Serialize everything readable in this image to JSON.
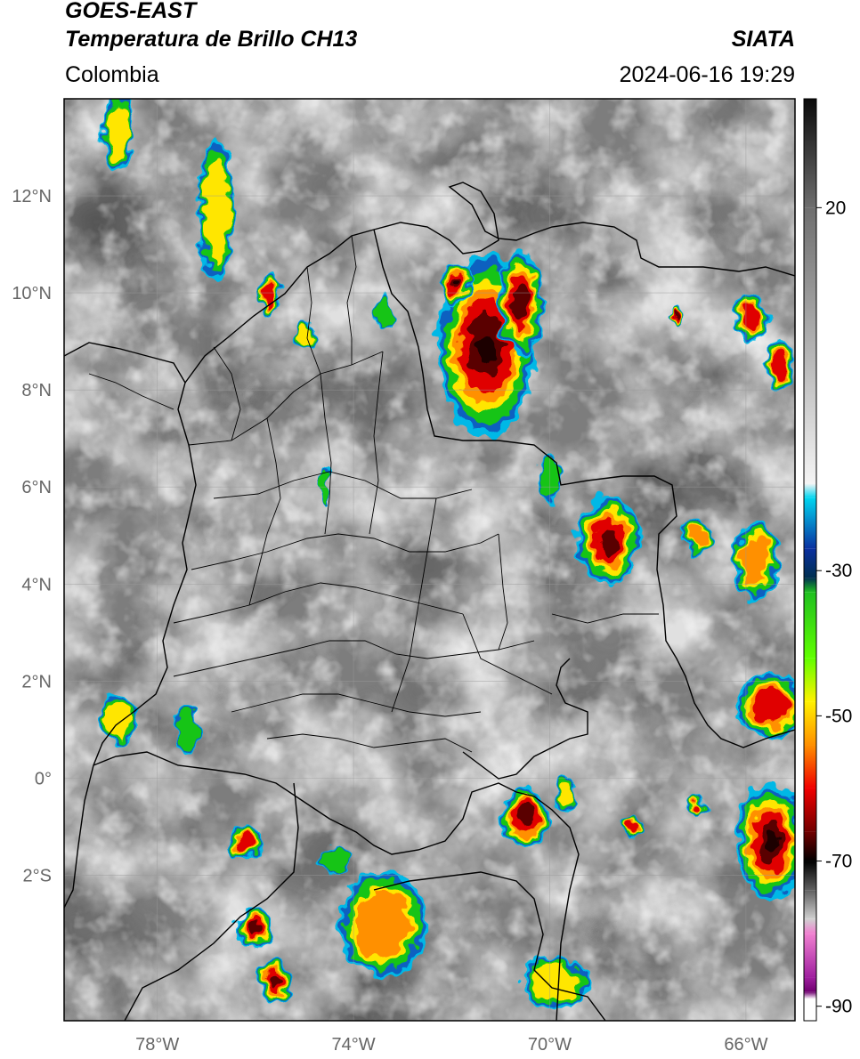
{
  "header": {
    "satellite": "GOES-EAST",
    "product": "Temperatura de Brillo CH13",
    "region": "Colombia",
    "organization": "SIATA",
    "timestamp": "2024-06-16 19:29"
  },
  "map": {
    "extent": {
      "lon_min": -79.9,
      "lon_max": -65.0,
      "lat_min": -5.0,
      "lat_max": 14.0
    },
    "lat_ticks": [
      {
        "value": 12,
        "label": "12°N"
      },
      {
        "value": 10,
        "label": "10°N"
      },
      {
        "value": 8,
        "label": "8°N"
      },
      {
        "value": 6,
        "label": "6°N"
      },
      {
        "value": 4,
        "label": "4°N"
      },
      {
        "value": 2,
        "label": "2°N"
      },
      {
        "value": 0,
        "label": "0°"
      },
      {
        "value": -2,
        "label": "2°S"
      }
    ],
    "lon_ticks": [
      {
        "value": -78,
        "label": "78°W"
      },
      {
        "value": -74,
        "label": "74°W"
      },
      {
        "value": -70,
        "label": "70°W"
      },
      {
        "value": -66,
        "label": "66°W"
      }
    ],
    "grid": true
  },
  "colorbar": {
    "min": -92,
    "max": 35,
    "ticks": [
      {
        "value": 20,
        "label": "20"
      },
      {
        "value": -30,
        "label": "-30"
      },
      {
        "value": -50,
        "label": "-50"
      },
      {
        "value": -70,
        "label": "-70"
      },
      {
        "value": -90,
        "label": "-90"
      }
    ]
  },
  "storm_cells": [
    {
      "lon": -71.3,
      "lat": 8.9,
      "rlon": 1.0,
      "rlat": 1.9,
      "intensity": 1.0
    },
    {
      "lon": -71.9,
      "lat": 10.2,
      "rlon": 0.35,
      "rlat": 0.4,
      "intensity": 0.95
    },
    {
      "lon": -70.6,
      "lat": 9.8,
      "rlon": 0.45,
      "rlat": 1.1,
      "intensity": 0.85
    },
    {
      "lon": -68.8,
      "lat": 4.9,
      "rlon": 0.65,
      "rlat": 0.9,
      "intensity": 0.9
    },
    {
      "lon": -73.4,
      "lat": -3.0,
      "rlon": 0.9,
      "rlat": 1.1,
      "intensity": 0.6
    },
    {
      "lon": -76.2,
      "lat": -1.3,
      "rlon": 0.35,
      "rlat": 0.35,
      "intensity": 0.8
    },
    {
      "lon": -76.0,
      "lat": -3.1,
      "rlon": 0.4,
      "rlat": 0.4,
      "intensity": 0.85
    },
    {
      "lon": -75.6,
      "lat": -4.2,
      "rlon": 0.35,
      "rlat": 0.45,
      "intensity": 0.9
    },
    {
      "lon": -70.5,
      "lat": -0.8,
      "rlon": 0.5,
      "rlat": 0.6,
      "intensity": 0.85
    },
    {
      "lon": -65.5,
      "lat": -1.3,
      "rlon": 0.7,
      "rlat": 1.2,
      "intensity": 1.0
    },
    {
      "lon": -65.5,
      "lat": 1.5,
      "rlon": 0.7,
      "rlat": 0.7,
      "intensity": 0.8
    },
    {
      "lon": -65.8,
      "lat": 4.5,
      "rlon": 0.45,
      "rlat": 0.8,
      "intensity": 0.65
    },
    {
      "lon": -65.3,
      "lat": 8.5,
      "rlon": 0.3,
      "rlat": 0.5,
      "intensity": 0.75
    },
    {
      "lon": -65.9,
      "lat": 9.5,
      "rlon": 0.35,
      "rlat": 0.5,
      "intensity": 0.7
    },
    {
      "lon": -70.0,
      "lat": 6.2,
      "rlon": 0.25,
      "rlat": 0.55,
      "intensity": 0.4
    },
    {
      "lon": -69.9,
      "lat": -4.2,
      "rlon": 0.7,
      "rlat": 0.55,
      "intensity": 0.55
    },
    {
      "lon": -78.8,
      "lat": 1.2,
      "rlon": 0.4,
      "rlat": 0.5,
      "intensity": 0.55
    },
    {
      "lon": -75.7,
      "lat": 9.9,
      "rlon": 0.2,
      "rlat": 0.5,
      "intensity": 0.75
    },
    {
      "lon": -76.8,
      "lat": 11.7,
      "rlon": 0.35,
      "rlat": 1.5,
      "intensity": 0.45
    },
    {
      "lon": -78.8,
      "lat": 13.3,
      "rlon": 0.3,
      "rlat": 0.8,
      "intensity": 0.55
    },
    {
      "lon": -75.0,
      "lat": 9.1,
      "rlon": 0.25,
      "rlat": 0.25,
      "intensity": 0.55
    },
    {
      "lon": -74.6,
      "lat": 6.0,
      "rlon": 0.12,
      "rlat": 0.45,
      "intensity": 0.35
    },
    {
      "lon": -73.4,
      "lat": 9.6,
      "rlon": 0.2,
      "rlat": 0.4,
      "intensity": 0.4
    },
    {
      "lon": -77.4,
      "lat": 1.0,
      "rlon": 0.25,
      "rlat": 0.5,
      "intensity": 0.3
    },
    {
      "lon": -74.4,
      "lat": -1.7,
      "rlon": 0.3,
      "rlat": 0.3,
      "intensity": 0.4
    },
    {
      "lon": -68.3,
      "lat": -1.0,
      "rlon": 0.2,
      "rlat": 0.2,
      "intensity": 0.8
    },
    {
      "lon": -67.0,
      "lat": -0.6,
      "rlon": 0.2,
      "rlat": 0.2,
      "intensity": 0.7
    },
    {
      "lon": -69.7,
      "lat": -0.3,
      "rlon": 0.25,
      "rlat": 0.35,
      "intensity": 0.45
    },
    {
      "lon": -67.0,
      "lat": 5.0,
      "rlon": 0.3,
      "rlat": 0.35,
      "intensity": 0.6
    },
    {
      "lon": -67.4,
      "lat": 9.5,
      "rlon": 0.1,
      "rlat": 0.2,
      "intensity": 0.85
    }
  ]
}
